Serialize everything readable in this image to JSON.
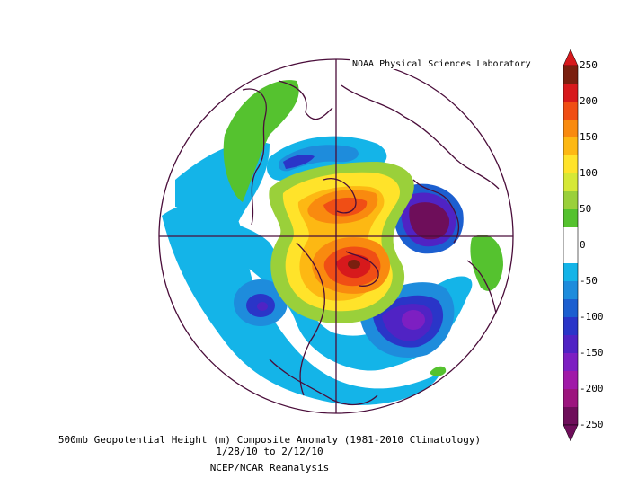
{
  "credit": "NOAA Physical Sciences Laboratory",
  "caption": {
    "line1": "500mb Geopotential Height (m) Composite Anomaly (1981-2010 Climatology)",
    "line2": "1/28/10   to 2/12/10",
    "line3": "NCEP/NCAR Reanalysis"
  },
  "colorbar": {
    "levels": [
      "250",
      "200",
      "150",
      "100",
      "50",
      "0",
      "-50",
      "-100",
      "-150",
      "-200",
      "-250"
    ],
    "colors": [
      "#7a1f0f",
      "#d7191c",
      "#f04e15",
      "#f98a0f",
      "#fdb813",
      "#ffe32a",
      "#d6e836",
      "#9ad03a",
      "#55c22f",
      "#ffffff",
      "#ffffff",
      "#14b4e8",
      "#1e8cdc",
      "#1c5fd0",
      "#2a35c8",
      "#5023c4",
      "#7d1fc2",
      "#a01aa8",
      "#9c157e",
      "#6e0e5a"
    ]
  },
  "map": {
    "projection": "north-polar-stereographic",
    "variable": "500mb geopotential height anomaly",
    "units": "m",
    "features": [
      {
        "name": "positive anomaly center over Greenland / Baffin",
        "value": 250
      },
      {
        "name": "positive anomaly north of Siberia / Arctic",
        "value": 150
      },
      {
        "name": "negative anomaly center over Europe / Scandinavia",
        "value": -250
      },
      {
        "name": "negative anomaly center over North Atlantic",
        "value": -200
      },
      {
        "name": "negative anomaly center over North Pacific",
        "value": -150
      },
      {
        "name": "negative anomaly over eastern Siberia",
        "value": -100
      }
    ]
  }
}
